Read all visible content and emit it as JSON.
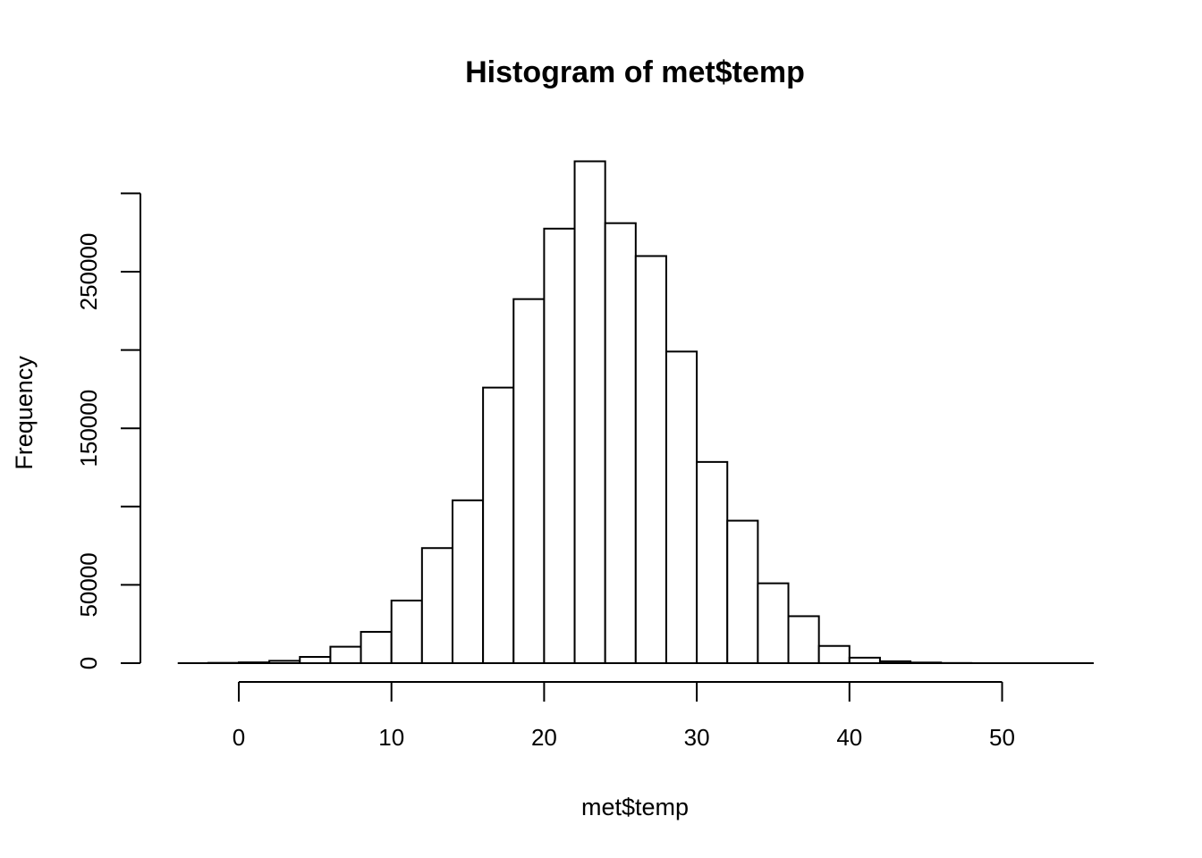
{
  "chart_data": {
    "type": "bar",
    "title": "Histogram of met$temp",
    "xlabel": "met$temp",
    "ylabel": "Frequency",
    "bin_width": 2,
    "bins": [
      {
        "x0": -4,
        "x1": -2,
        "count": 0
      },
      {
        "x0": -2,
        "x1": 0,
        "count": 200
      },
      {
        "x0": 0,
        "x1": 2,
        "count": 500
      },
      {
        "x0": 2,
        "x1": 4,
        "count": 1500
      },
      {
        "x0": 4,
        "x1": 6,
        "count": 4000
      },
      {
        "x0": 6,
        "x1": 8,
        "count": 10500
      },
      {
        "x0": 8,
        "x1": 10,
        "count": 20000
      },
      {
        "x0": 10,
        "x1": 12,
        "count": 40000
      },
      {
        "x0": 12,
        "x1": 14,
        "count": 73500
      },
      {
        "x0": 14,
        "x1": 16,
        "count": 104000
      },
      {
        "x0": 16,
        "x1": 18,
        "count": 176000
      },
      {
        "x0": 18,
        "x1": 20,
        "count": 232500
      },
      {
        "x0": 20,
        "x1": 22,
        "count": 277500
      },
      {
        "x0": 22,
        "x1": 24,
        "count": 320500
      },
      {
        "x0": 24,
        "x1": 26,
        "count": 281000
      },
      {
        "x0": 26,
        "x1": 28,
        "count": 260000
      },
      {
        "x0": 28,
        "x1": 30,
        "count": 199000
      },
      {
        "x0": 30,
        "x1": 32,
        "count": 128500
      },
      {
        "x0": 32,
        "x1": 34,
        "count": 91000
      },
      {
        "x0": 34,
        "x1": 36,
        "count": 51000
      },
      {
        "x0": 36,
        "x1": 38,
        "count": 30000
      },
      {
        "x0": 38,
        "x1": 40,
        "count": 11000
      },
      {
        "x0": 40,
        "x1": 42,
        "count": 3500
      },
      {
        "x0": 42,
        "x1": 44,
        "count": 1200
      },
      {
        "x0": 44,
        "x1": 46,
        "count": 400
      },
      {
        "x0": 46,
        "x1": 48,
        "count": 100
      },
      {
        "x0": 48,
        "x1": 50,
        "count": 0
      },
      {
        "x0": 50,
        "x1": 52,
        "count": 0
      },
      {
        "x0": 52,
        "x1": 54,
        "count": 0
      },
      {
        "x0": 54,
        "x1": 56,
        "count": 0
      }
    ],
    "xlim": [
      -4,
      56
    ],
    "ylim": [
      0,
      300000
    ],
    "x_ticks": [
      0,
      10,
      20,
      30,
      40,
      50
    ],
    "y_ticks": [
      0,
      50000,
      100000,
      150000,
      200000,
      250000,
      300000
    ],
    "y_tick_labels": [
      "0",
      "50000",
      "",
      "150000",
      "",
      "250000",
      ""
    ],
    "grid": false,
    "legend": "none"
  }
}
